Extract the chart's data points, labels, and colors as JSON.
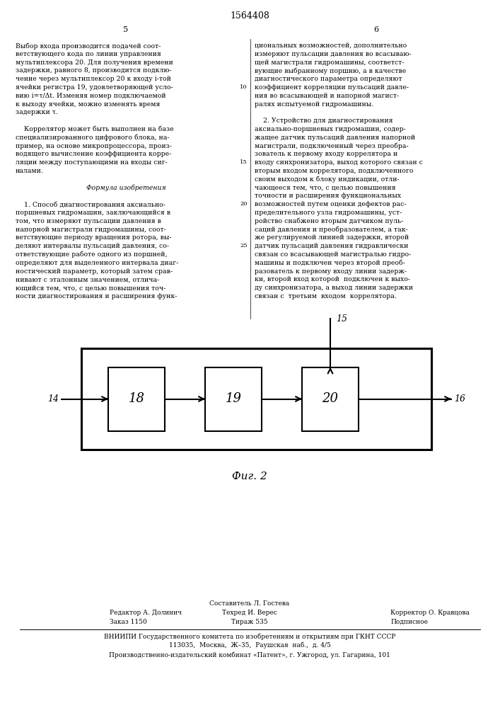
{
  "page_title": "1564408",
  "col_left_num": "5",
  "col_right_num": "6",
  "left_col_text": [
    "Выбор входа производится подачей соот-",
    "ветствующего кода по линии управления",
    "мультиплексора 20. Для получения времени",
    "задержки, равного 8, производится подклю-",
    "чение через мультиплексор 20 к входу i-той",
    "ячейки регистра 19, удовлетворяющей усло-",
    "вию i=τ/Δt. Изменяя номер подключаемой",
    "к выходу ячейки, можно изменять время",
    "задержки τ.",
    "",
    "    Коррелятор может быть выполнен на базе",
    "специализированного цифрового блока, на-",
    "пример, на основе микропроцессора, произ-",
    "водящего вычисление коэффициента корре-",
    "ляции между поступающими на входы сиг-",
    "налами.",
    "",
    "Формула изобретения",
    "",
    "    1. Способ диагностирования аксиально-",
    "поршневых гидромашин, заключающийся в",
    "том, что измеряют пульсации давления в",
    "напорной магистрали гидромашины, соот-",
    "ветствующие периоду вращения ротора, вы-",
    "деляют интервалы пульсаций давления, со-",
    "ответствующие работе одного из поршней,",
    "определяют для выделенного интервала диаг-",
    "ностический параметр, который затем срав-",
    "нивают с эталонным значением, отлича-",
    "ющийся тем, что, с целью повышения точ-",
    "ности диагностирования и расширения функ-"
  ],
  "right_col_text": [
    "циональных возможностей, дополнительно",
    "измеряют пульсации давления во всасываю-",
    "щей магистрали гидромашины, соответст-",
    "вующие выбранному поршню, а в качестве",
    "диагностического параметра определяют",
    "коэффициент корреляции пульсаций давле-",
    "ния во всасывающей и напорной магист-",
    "ралях испытуемой гидромашины.",
    "",
    "    2. Устройство для диагностирования",
    "аксиально-поршневых гидромашин, содер-",
    "жащее датчик пульсаций давления напорной",
    "магистрали, подключенный через преобра-",
    "зователь к первому входу коррелятора и",
    "входу синхронизатора, выход которого связан с",
    "вторым входом коррелятора, подключенного",
    "своим выходом к блоку индикации, отли-",
    "чающееся тем, что, с целью повышения",
    "точности и расширения функциональных",
    "возможностей путем оценки дефектов рас-",
    "пределительного узла гидромашины, уст-",
    "ройство снабжено вторым датчиком пуль-",
    "саций давления и преобразователем, а так-",
    "же регулируемой линией задержки, второй",
    "датчик пульсаций давления гидравлически",
    "связан со всасывающей магистралью гидро-",
    "машины и подключен через второй преоб-",
    "разователь к первому входу линии задерж-",
    "ки, второй вход которой  подключен к выхо-",
    "ду синхронизатора, а выход линии задержки",
    "связан с  третьим  входом  коррелятора."
  ],
  "block_labels": [
    "18",
    "19",
    "20"
  ],
  "input_label": "14",
  "output_label": "16",
  "top_input_label": "15",
  "diagram_label": "Фиг. 2",
  "footer_composer": "Составитель Л. Гостева",
  "footer_editor": "Редактор А. Долинич",
  "footer_techred": "Техред И. Верес",
  "footer_corrector": "Корректор О. Кравцова",
  "footer_order": "Заказ 1150",
  "footer_tirazh": "Тираж 535",
  "footer_podpisnoe": "Подписное",
  "footer_vniipи": "ВНИИПИ Государственного комитета по изобретениям и открытиям при ГКНТ СССР",
  "footer_addr1": "113035,  Москва,  Ж–35,  Раушская  наб.,  д. 4/5",
  "footer_addr2": "Производственно-издательский комбинат «Патент», г. Ужгород, ул. Гагарина, 101",
  "bg_color": "#ffffff",
  "text_color": "#000000"
}
